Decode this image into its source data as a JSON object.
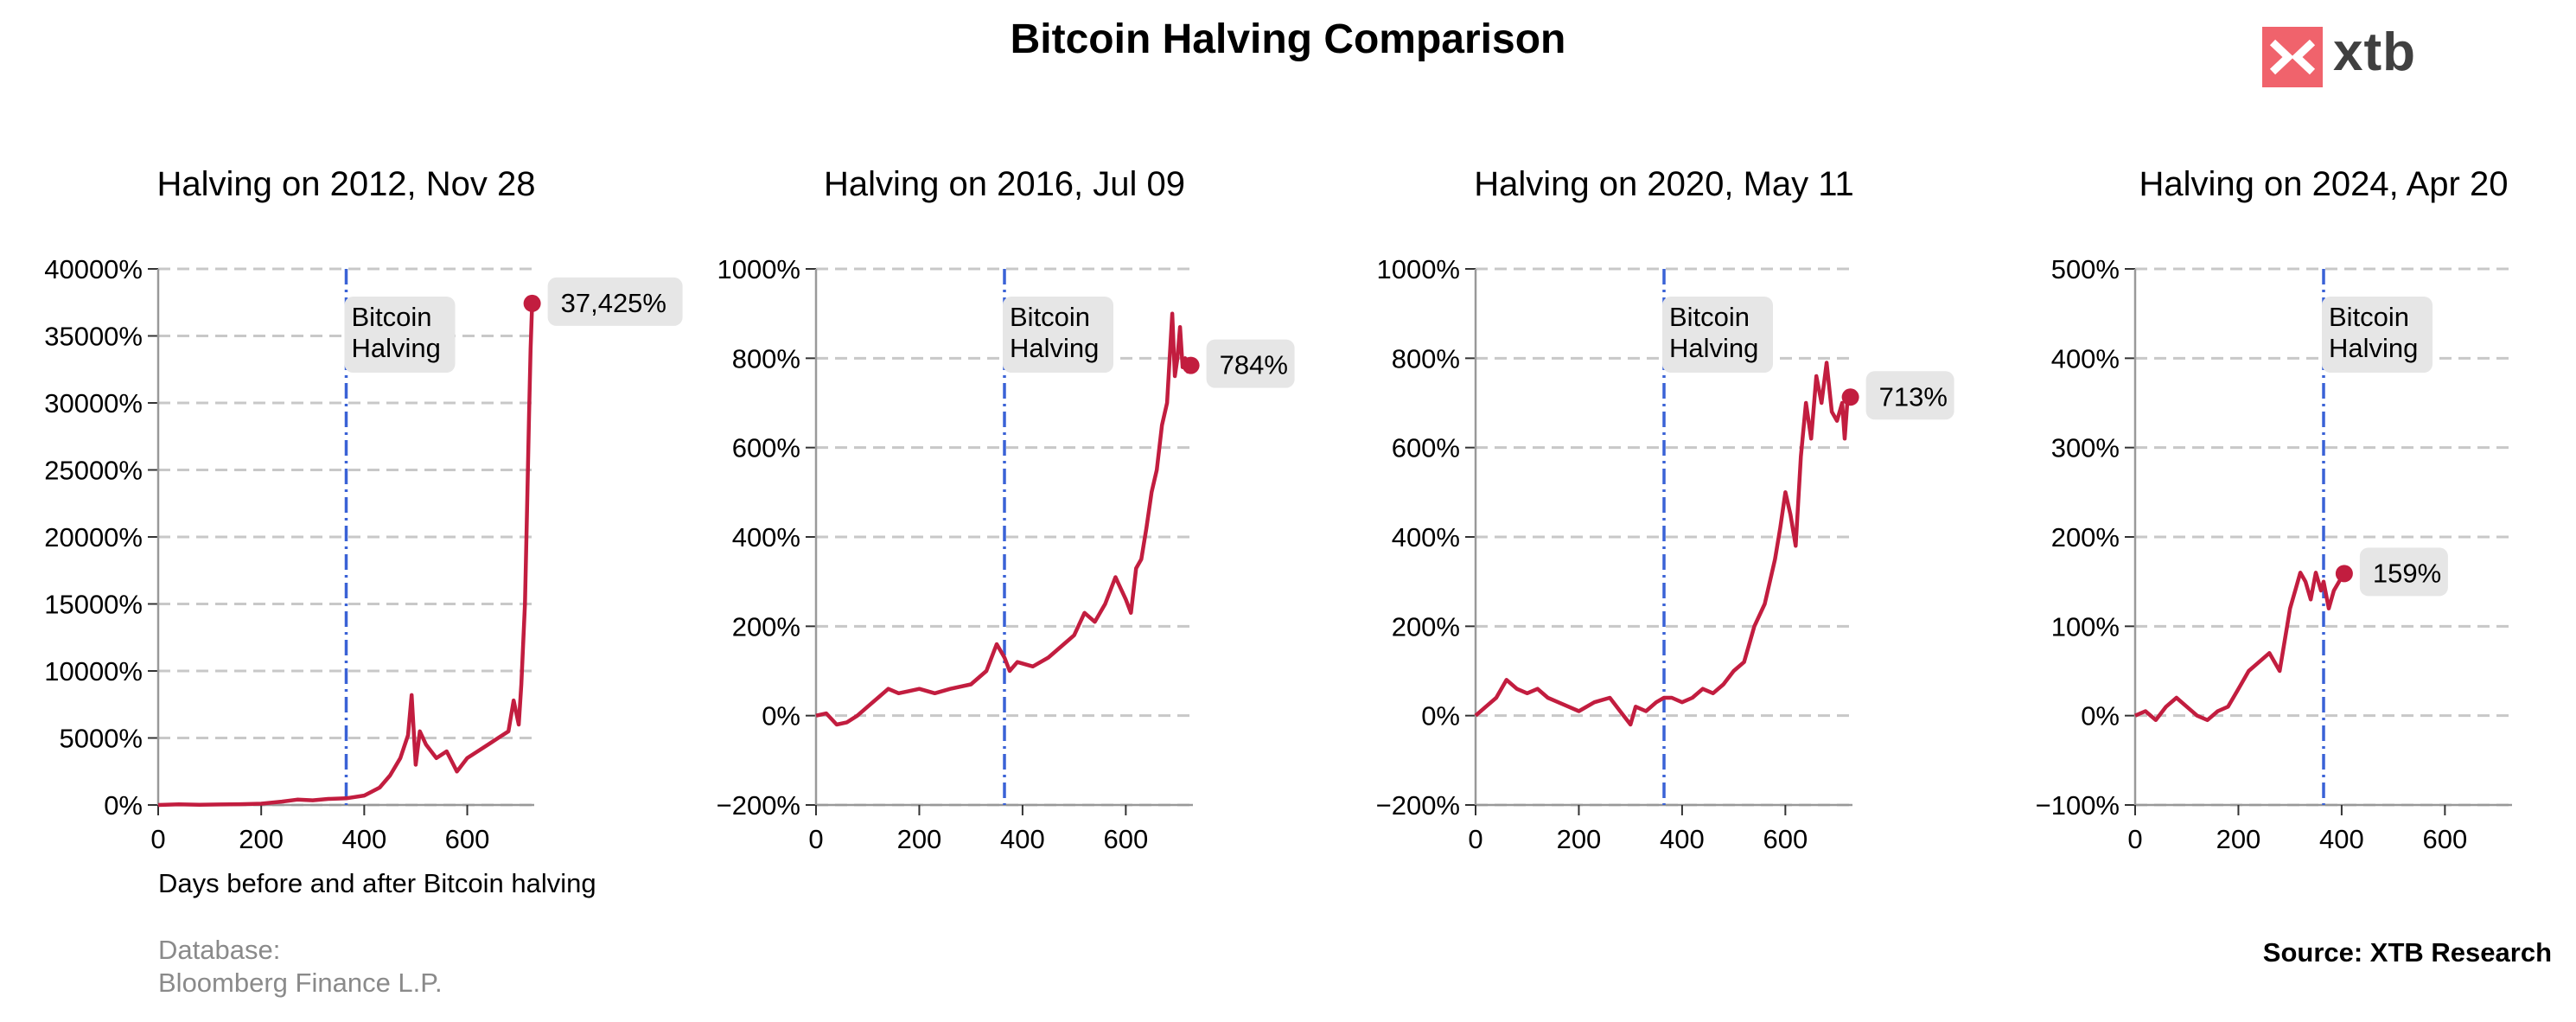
{
  "title": "Bitcoin Halving Comparison",
  "logo": {
    "text": "xtb",
    "color": "#f0636c"
  },
  "source": "Source: XTB Research",
  "database": {
    "label": "Database:",
    "value": "Bloomberg Finance L.P."
  },
  "colors": {
    "line": "#c21d3f",
    "halving_line": "#3a62d6",
    "grid": "#c8c8c8",
    "label_box": "#e6e6e6"
  },
  "chart_data": [
    {
      "type": "line",
      "title": "Halving on 2012, Nov 28",
      "xlabel": "Days before and after Bitcoin halving",
      "ylabel": "",
      "xlim": [
        0,
        730
      ],
      "ylim": [
        0,
        40000
      ],
      "yticks": [
        0,
        5000,
        10000,
        15000,
        20000,
        25000,
        30000,
        35000,
        40000
      ],
      "yticklabels": [
        "0%",
        "5000%",
        "10000%",
        "15000%",
        "20000%",
        "25000%",
        "30000%",
        "35000%",
        "40000%"
      ],
      "xticks": [
        0,
        200,
        400,
        600
      ],
      "xticklabels": [
        "0",
        "200",
        "400",
        "600"
      ],
      "halving_day": 365,
      "halving_label": [
        "Bitcoin",
        "Halving"
      ],
      "end_label": "37,425%",
      "end_value": 37425,
      "x": [
        0,
        40,
        80,
        120,
        160,
        200,
        240,
        270,
        300,
        330,
        365,
        400,
        430,
        450,
        470,
        485,
        492,
        500,
        508,
        520,
        540,
        560,
        580,
        600,
        620,
        640,
        660,
        680,
        690,
        700,
        705,
        712,
        716,
        720,
        723,
        726
      ],
      "y": [
        0,
        50,
        20,
        40,
        60,
        100,
        250,
        400,
        350,
        450,
        500,
        700,
        1300,
        2200,
        3500,
        5200,
        8200,
        3000,
        5500,
        4500,
        3500,
        4000,
        2500,
        3500,
        4000,
        4500,
        5000,
        5500,
        7800,
        6000,
        9000,
        15000,
        22000,
        29000,
        34000,
        37425
      ]
    },
    {
      "type": "line",
      "title": "Halving on 2016, Jul 09",
      "xlabel": "",
      "ylabel": "",
      "xlim": [
        0,
        730
      ],
      "ylim": [
        -200,
        1000
      ],
      "yticks": [
        -200,
        0,
        200,
        400,
        600,
        800,
        1000
      ],
      "yticklabels": [
        "−200%",
        "0%",
        "200%",
        "400%",
        "600%",
        "800%",
        "1000%"
      ],
      "xticks": [
        0,
        200,
        400,
        600
      ],
      "xticklabels": [
        "0",
        "200",
        "400",
        "600"
      ],
      "halving_day": 365,
      "halving_label": [
        "Bitcoin",
        "Halving"
      ],
      "end_label": "784%",
      "end_value": 784,
      "x": [
        0,
        20,
        40,
        60,
        80,
        100,
        120,
        140,
        160,
        180,
        200,
        230,
        260,
        300,
        330,
        350,
        360,
        365,
        375,
        390,
        420,
        450,
        480,
        500,
        520,
        540,
        560,
        580,
        600,
        610,
        620,
        630,
        640,
        650,
        660,
        670,
        680,
        690,
        695,
        700,
        705,
        710,
        715,
        720,
        726
      ],
      "y": [
        0,
        5,
        -20,
        -15,
        0,
        20,
        40,
        60,
        50,
        55,
        60,
        50,
        60,
        70,
        100,
        160,
        140,
        130,
        100,
        120,
        110,
        130,
        160,
        180,
        230,
        210,
        250,
        310,
        260,
        230,
        330,
        350,
        420,
        500,
        550,
        650,
        700,
        900,
        760,
        800,
        870,
        780,
        800,
        770,
        784
      ]
    },
    {
      "type": "line",
      "title": "Halving on 2020, May 11",
      "xlabel": "",
      "ylabel": "",
      "xlim": [
        0,
        730
      ],
      "ylim": [
        -200,
        1000
      ],
      "yticks": [
        -200,
        0,
        200,
        400,
        600,
        800,
        1000
      ],
      "yticklabels": [
        "−200%",
        "0%",
        "200%",
        "400%",
        "600%",
        "800%",
        "1000%"
      ],
      "xticks": [
        0,
        200,
        400,
        600
      ],
      "xticklabels": [
        "0",
        "200",
        "400",
        "600"
      ],
      "halving_day": 365,
      "halving_label": [
        "Bitcoin",
        "Halving"
      ],
      "end_label": "713%",
      "end_value": 713,
      "x": [
        0,
        20,
        40,
        60,
        80,
        100,
        120,
        140,
        160,
        180,
        200,
        230,
        260,
        280,
        300,
        310,
        330,
        350,
        365,
        380,
        400,
        420,
        440,
        460,
        480,
        500,
        520,
        540,
        560,
        580,
        590,
        600,
        610,
        620,
        630,
        640,
        650,
        660,
        670,
        680,
        690,
        700,
        710,
        715,
        720,
        726
      ],
      "y": [
        0,
        20,
        40,
        80,
        60,
        50,
        60,
        40,
        30,
        20,
        10,
        30,
        40,
        10,
        -20,
        20,
        10,
        30,
        40,
        40,
        30,
        40,
        60,
        50,
        70,
        100,
        120,
        200,
        250,
        350,
        420,
        500,
        450,
        380,
        580,
        700,
        620,
        760,
        700,
        790,
        680,
        660,
        700,
        620,
        700,
        713
      ]
    },
    {
      "type": "line",
      "title": "Halving on 2024, Apr 20",
      "xlabel": "",
      "ylabel": "",
      "xlim": [
        0,
        730
      ],
      "ylim": [
        -100,
        500
      ],
      "yticks": [
        -100,
        0,
        100,
        200,
        300,
        400,
        500
      ],
      "yticklabels": [
        "−100%",
        "0%",
        "100%",
        "200%",
        "300%",
        "400%",
        "500%"
      ],
      "xticks": [
        0,
        200,
        400,
        600
      ],
      "xticklabels": [
        "0",
        "200",
        "400",
        "600"
      ],
      "halving_day": 365,
      "halving_label": [
        "Bitcoin",
        "Halving"
      ],
      "end_label": "159%",
      "end_value": 159,
      "x": [
        0,
        20,
        40,
        60,
        80,
        100,
        120,
        140,
        160,
        180,
        200,
        220,
        240,
        260,
        280,
        300,
        310,
        320,
        330,
        340,
        350,
        360,
        365,
        375,
        385,
        395,
        405
      ],
      "y": [
        0,
        5,
        -5,
        10,
        20,
        10,
        0,
        -5,
        5,
        10,
        30,
        50,
        60,
        70,
        50,
        120,
        140,
        160,
        150,
        130,
        160,
        140,
        150,
        120,
        140,
        150,
        159
      ]
    }
  ]
}
